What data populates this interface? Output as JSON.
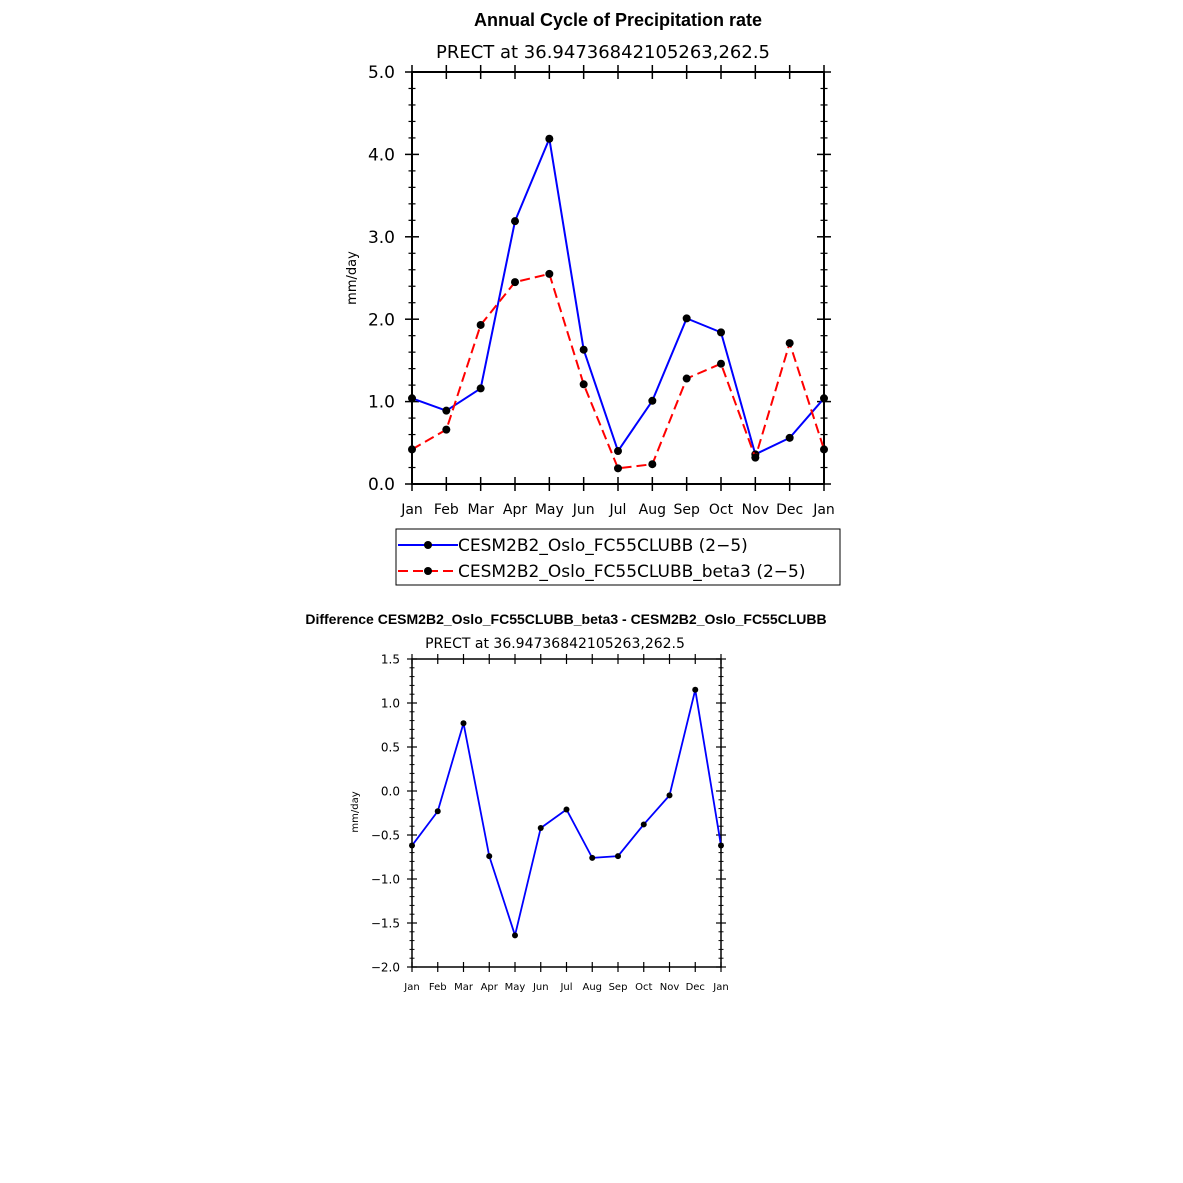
{
  "chart_data": [
    {
      "type": "line",
      "title": "Annual Cycle of Precipitation rate",
      "subtitle": "PRECT at 36.94736842105263,262.5",
      "xlabel": "",
      "ylabel": "mm/day",
      "categories": [
        "Jan",
        "Feb",
        "Mar",
        "Apr",
        "May",
        "Jun",
        "Jul",
        "Aug",
        "Sep",
        "Oct",
        "Nov",
        "Dec",
        "Jan"
      ],
      "ylim": [
        0,
        5
      ],
      "yticks": [
        "0.0",
        "1.0",
        "2.0",
        "3.0",
        "4.0",
        "5.0"
      ],
      "grid": false,
      "legend_position": "bottom",
      "series": [
        {
          "name": "CESM2B2_Oslo_FC55CLUBB (2−5)",
          "color": "#0000ff",
          "dash": "solid",
          "values": [
            1.04,
            0.89,
            1.16,
            3.19,
            4.19,
            1.63,
            0.4,
            1.01,
            2.01,
            1.84,
            0.36,
            0.56,
            1.04
          ]
        },
        {
          "name": "CESM2B2_Oslo_FC55CLUBB_beta3 (2−5)",
          "color": "#ff0000",
          "dash": "dashed",
          "values": [
            0.42,
            0.66,
            1.93,
            2.45,
            2.55,
            1.21,
            0.19,
            0.24,
            1.28,
            1.46,
            0.32,
            1.71,
            0.42
          ]
        }
      ]
    },
    {
      "type": "line",
      "title": "Difference CESM2B2_Oslo_FC55CLUBB_beta3 - CESM2B2_Oslo_FC55CLUBB",
      "subtitle": "PRECT at 36.94736842105263,262.5",
      "xlabel": "",
      "ylabel": "mm/day",
      "categories": [
        "Jan",
        "Feb",
        "Mar",
        "Apr",
        "May",
        "Jun",
        "Jul",
        "Aug",
        "Sep",
        "Oct",
        "Nov",
        "Dec",
        "Jan"
      ],
      "ylim": [
        -2.0,
        1.5
      ],
      "yticks": [
        "−2.0",
        "−1.5",
        "−1.0",
        "−0.5",
        "0.0",
        "0.5",
        "1.0",
        "1.5"
      ],
      "grid": false,
      "series": [
        {
          "color": "#0000ff",
          "values": [
            -0.62,
            -0.23,
            0.77,
            -0.74,
            -1.64,
            -0.42,
            -0.21,
            -0.76,
            -0.74,
            -0.38,
            -0.05,
            1.15,
            -0.62
          ]
        }
      ]
    }
  ]
}
